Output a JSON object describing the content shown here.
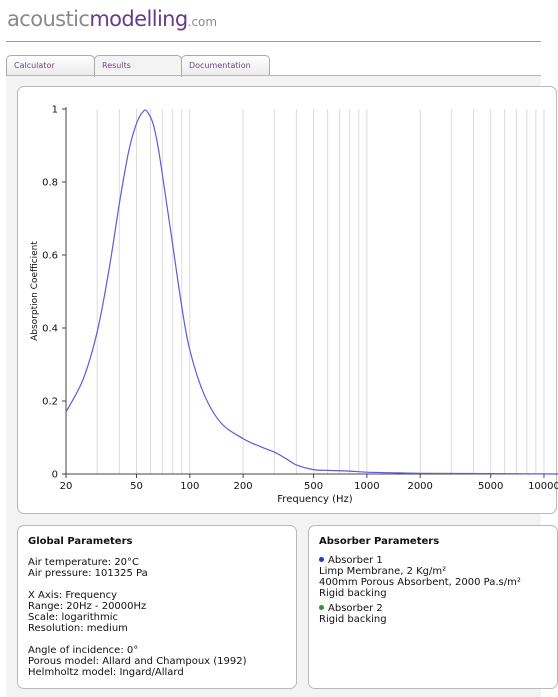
{
  "brand": {
    "part1": "acoustic",
    "part2": "modelling",
    "part3": ".com"
  },
  "tabs": [
    {
      "label": "Calculator"
    },
    {
      "label": "Results"
    },
    {
      "label": "Documentation"
    }
  ],
  "colors": {
    "curve": "#5d5dd8",
    "absorber1": "#1a3ad8",
    "absorber2": "#2a9a2a"
  },
  "chart_data": {
    "type": "line",
    "title": "",
    "xlabel": "Frequency (Hz)",
    "ylabel": "Absorption Coefficient",
    "xscale": "log",
    "xlim": [
      20,
      12000
    ],
    "ylim": [
      0,
      1
    ],
    "xticks": [
      20,
      50,
      100,
      200,
      500,
      1000,
      2000,
      5000,
      10000
    ],
    "yticks": [
      0,
      0.2,
      0.4,
      0.6,
      0.8,
      1
    ],
    "grid": "vertical",
    "legend": "none",
    "series": [
      {
        "x": [
          20,
          25,
          30,
          35,
          40,
          45,
          50,
          55,
          58,
          62,
          66,
          70,
          80,
          90,
          100,
          120,
          150,
          200,
          250,
          300,
          350,
          400,
          500,
          600,
          800,
          1000,
          1500,
          2000,
          5000,
          12000
        ],
        "y": [
          0.17,
          0.26,
          0.39,
          0.56,
          0.74,
          0.88,
          0.96,
          0.995,
          0.99,
          0.96,
          0.9,
          0.82,
          0.63,
          0.46,
          0.34,
          0.22,
          0.14,
          0.097,
          0.075,
          0.06,
          0.042,
          0.025,
          0.012,
          0.01,
          0.008,
          0.005,
          0.003,
          0.002,
          0.001,
          0.0
        ]
      }
    ]
  },
  "global_params": {
    "title": "Global Parameters",
    "air_temperature": "Air temperature: 20°C",
    "air_pressure": "Air pressure: 101325 Pa",
    "x_axis": "X Axis: Frequency",
    "range": "Range: 20Hz - 20000Hz",
    "scale": "Scale: logarithmic",
    "resolution": "Resolution: medium",
    "angle": "Angle of incidence: 0°",
    "porous_model": "Porous model: Allard and Champoux (1992)",
    "helmholtz_model": "Helmholtz model: Ingard/Allard"
  },
  "absorber_params": {
    "title": "Absorber Parameters",
    "absorber1": {
      "name": "Absorber 1",
      "lines": [
        "Limp Membrane, 2 Kg/m²",
        "400mm Porous Absorbent, 2000 Pa.s/m²",
        "Rigid backing"
      ]
    },
    "absorber2": {
      "name": "Absorber 2",
      "lines": [
        "Rigid backing"
      ]
    }
  }
}
